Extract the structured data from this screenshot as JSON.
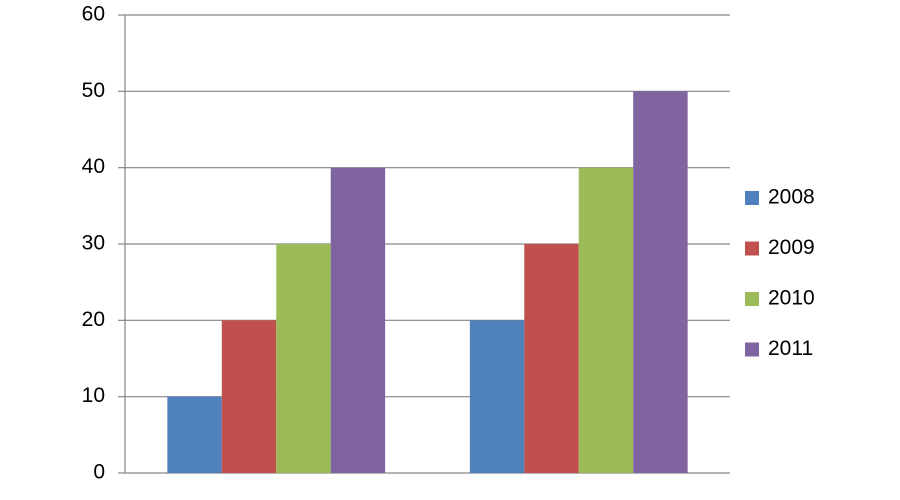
{
  "chart_data": {
    "type": "bar",
    "categories": [
      null,
      null
    ],
    "series": [
      {
        "name": "2008",
        "color": "#4f81bd",
        "values": [
          10,
          20
        ]
      },
      {
        "name": "2009",
        "color": "#c0504d",
        "values": [
          20,
          30
        ]
      },
      {
        "name": "2010",
        "color": "#9bbb59",
        "values": [
          30,
          40
        ]
      },
      {
        "name": "2011",
        "color": "#8064a2",
        "values": [
          40,
          50
        ]
      }
    ],
    "ylim": [
      0,
      60
    ],
    "yticks": [
      0,
      10,
      20,
      30,
      40,
      50,
      60
    ],
    "grid": true,
    "legend": "right"
  }
}
